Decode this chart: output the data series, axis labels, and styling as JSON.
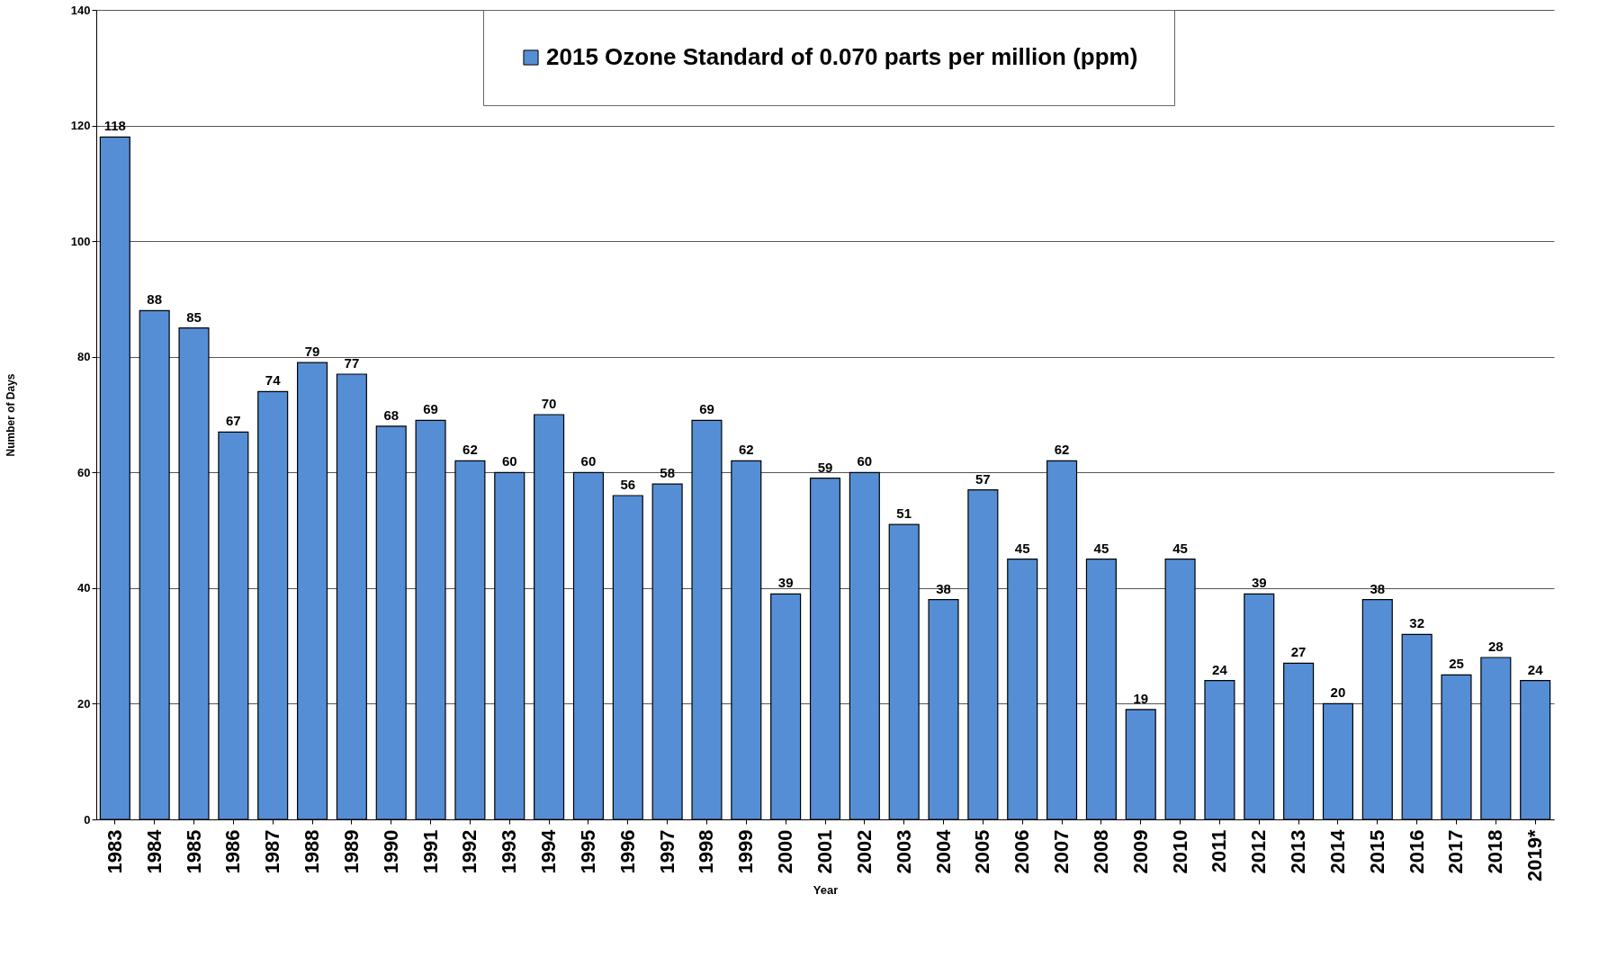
{
  "chart_data": {
    "type": "bar",
    "xlabel": "Year",
    "ylabel": "Number of Days",
    "categories": [
      "1983",
      "1984",
      "1985",
      "1986",
      "1987",
      "1988",
      "1989",
      "1990",
      "1991",
      "1992",
      "1993",
      "1994",
      "1995",
      "1996",
      "1997",
      "1998",
      "1999",
      "2000",
      "2001",
      "2002",
      "2003",
      "2004",
      "2005",
      "2006",
      "2007",
      "2008",
      "2009",
      "2010",
      "2011",
      "2012",
      "2013",
      "2014",
      "2015",
      "2016",
      "2017",
      "2018",
      "2019*"
    ],
    "series": [
      {
        "name": "2015 Ozone Standard of 0.070 parts per million (ppm)",
        "color": "#558ed5",
        "values": [
          118,
          88,
          85,
          67,
          74,
          79,
          77,
          68,
          69,
          62,
          60,
          70,
          60,
          56,
          58,
          69,
          62,
          39,
          59,
          60,
          51,
          38,
          57,
          45,
          62,
          45,
          19,
          45,
          24,
          39,
          27,
          20,
          38,
          32,
          25,
          28,
          24
        ]
      }
    ],
    "ylim": [
      0,
      140
    ],
    "yticks": [
      0,
      20,
      40,
      60,
      80,
      100,
      120,
      140
    ],
    "grid": "y",
    "legend": "top",
    "data_labels": true
  }
}
